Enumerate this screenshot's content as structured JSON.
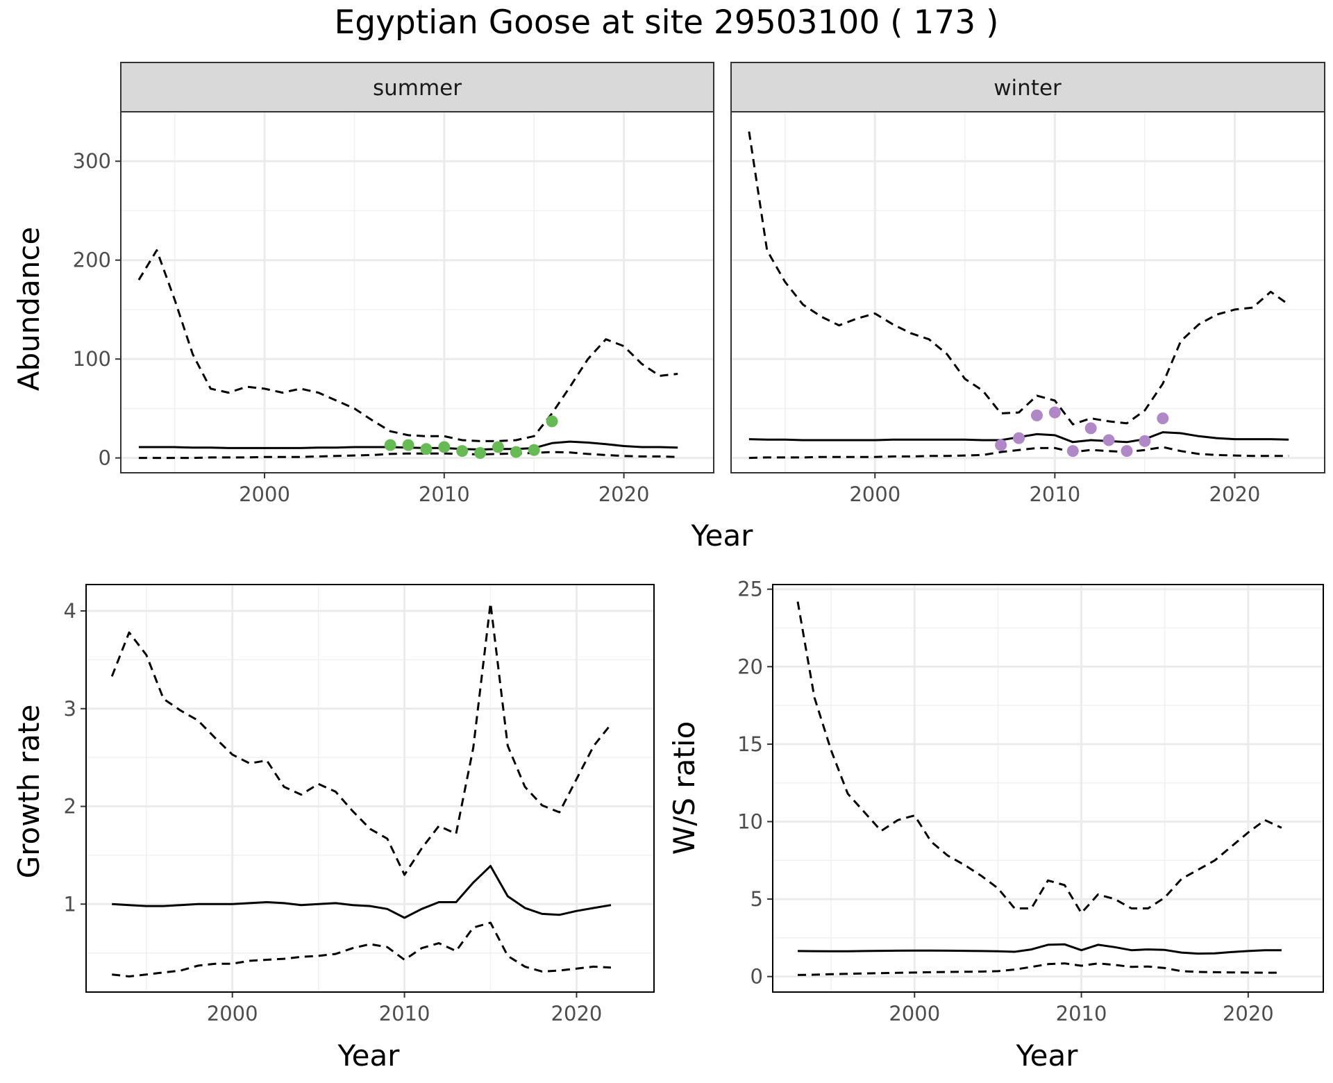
{
  "title": "Egyptian Goose at site 29503100 ( 173 )",
  "chart_data": [
    {
      "id": "abundance",
      "type": "line",
      "facets": [
        "summer",
        "winter"
      ],
      "xlabel": "Year",
      "ylabel": "Abundance",
      "xlim": [
        1992,
        2025
      ],
      "ylim": [
        -15,
        350
      ],
      "xticks": [
        2000,
        2010,
        2020
      ],
      "yticks": [
        0,
        100,
        200,
        300
      ],
      "grid": true,
      "panels": [
        {
          "facet": "summer",
          "point_color": "#66bb55",
          "series": [
            {
              "style": "solid",
              "x": [
                1993,
                1994,
                1995,
                1996,
                1997,
                1998,
                1999,
                2000,
                2001,
                2002,
                2003,
                2004,
                2005,
                2006,
                2007,
                2008,
                2009,
                2010,
                2011,
                2012,
                2013,
                2014,
                2015,
                2016,
                2017,
                2018,
                2019,
                2020,
                2021,
                2022,
                2023
              ],
              "values": [
                11,
                11,
                11,
                10.5,
                10.5,
                10,
                10,
                10,
                10,
                10,
                10.5,
                10.5,
                11,
                11,
                11,
                10.5,
                10,
                10,
                9,
                8.5,
                9,
                9,
                10,
                15,
                16.5,
                15.5,
                14,
                12,
                11,
                11,
                10.5
              ]
            },
            {
              "style": "dashed",
              "x": [
                1993,
                1994,
                1995,
                1996,
                1997,
                1998,
                1999,
                2000,
                2001,
                2002,
                2003,
                2004,
                2005,
                2006,
                2007,
                2008,
                2009,
                2010,
                2011,
                2012,
                2013,
                2014,
                2015,
                2016,
                2017,
                2018,
                2019,
                2020,
                2021,
                2022,
                2023
              ],
              "values": [
                180,
                210,
                160,
                105,
                70,
                66,
                72,
                70,
                66,
                70,
                66,
                58,
                50,
                38,
                27,
                23,
                22,
                22,
                18,
                17,
                17,
                18,
                22,
                45,
                72,
                100,
                120,
                113,
                95,
                83,
                85
              ]
            },
            {
              "style": "dashed",
              "x": [
                1993,
                1994,
                1995,
                1996,
                1997,
                1998,
                1999,
                2000,
                2001,
                2002,
                2003,
                2004,
                2005,
                2006,
                2007,
                2008,
                2009,
                2010,
                2011,
                2012,
                2013,
                2014,
                2015,
                2016,
                2017,
                2018,
                2019,
                2020,
                2021,
                2022,
                2023
              ],
              "values": [
                0,
                0,
                0,
                0,
                0.5,
                0.5,
                0.5,
                1,
                1,
                1,
                1.5,
                2,
                2.5,
                3,
                4,
                4.5,
                4.5,
                4.5,
                4,
                3.5,
                4,
                4.5,
                5,
                6,
                5.5,
                4,
                3,
                2,
                1.5,
                1.5,
                1
              ]
            }
          ],
          "points": {
            "x": [
              2007,
              2008,
              2009,
              2010,
              2011,
              2012,
              2013,
              2014,
              2015,
              2016
            ],
            "values": [
              13,
              13,
              9,
              11,
              7,
              5,
              11,
              6,
              8,
              37
            ]
          }
        },
        {
          "facet": "winter",
          "point_color": "#b088c8",
          "series": [
            {
              "style": "solid",
              "x": [
                1993,
                1994,
                1995,
                1996,
                1997,
                1998,
                1999,
                2000,
                2001,
                2002,
                2003,
                2004,
                2005,
                2006,
                2007,
                2008,
                2009,
                2010,
                2011,
                2012,
                2013,
                2014,
                2015,
                2016,
                2017,
                2018,
                2019,
                2020,
                2021,
                2022,
                2023
              ],
              "values": [
                19,
                18.5,
                18.5,
                18,
                18,
                18,
                18,
                18,
                18.5,
                18.5,
                18.5,
                18.5,
                18.5,
                18,
                18,
                21,
                24,
                23,
                16,
                18,
                17,
                16,
                19,
                26,
                25,
                22,
                20,
                19,
                19,
                19,
                18.5
              ]
            },
            {
              "style": "dashed",
              "x": [
                1993,
                1994,
                1995,
                1996,
                1997,
                1998,
                1999,
                2000,
                2001,
                2002,
                2003,
                2004,
                2005,
                2006,
                2007,
                2008,
                2009,
                2010,
                2011,
                2012,
                2013,
                2014,
                2015,
                2016,
                2017,
                2018,
                2019,
                2020,
                2021,
                2022,
                2023
              ],
              "values": [
                330,
                210,
                178,
                155,
                143,
                134,
                141,
                146,
                135,
                126,
                120,
                105,
                80,
                68,
                45,
                46,
                63,
                58,
                34,
                40,
                37,
                35,
                48,
                75,
                118,
                135,
                145,
                150,
                152,
                168,
                155
              ]
            },
            {
              "style": "dashed",
              "x": [
                1993,
                1994,
                1995,
                1996,
                1997,
                1998,
                1999,
                2000,
                2001,
                2002,
                2003,
                2004,
                2005,
                2006,
                2007,
                2008,
                2009,
                2010,
                2011,
                2012,
                2013,
                2014,
                2015,
                2016,
                2017,
                2018,
                2019,
                2020,
                2021,
                2022,
                2023
              ],
              "values": [
                0,
                0.5,
                0.5,
                0.5,
                1,
                1,
                1,
                1,
                1.5,
                1.5,
                2,
                2,
                2.5,
                3,
                6,
                8,
                10,
                10,
                6,
                8,
                7,
                6,
                8,
                11,
                7,
                4,
                3,
                2.5,
                2,
                2,
                2
              ]
            }
          ],
          "points": {
            "x": [
              2007,
              2008,
              2009,
              2010,
              2011,
              2012,
              2013,
              2014,
              2015,
              2016
            ],
            "values": [
              13,
              20,
              43,
              46,
              7,
              30,
              18,
              7,
              17,
              40
            ]
          }
        }
      ]
    },
    {
      "id": "growth",
      "type": "line",
      "xlabel": "Year",
      "ylabel": "Growth rate",
      "xlim": [
        1991.5,
        2024.5
      ],
      "ylim": [
        0.1,
        4.27
      ],
      "xticks": [
        2000,
        2010,
        2020
      ],
      "yticks": [
        1,
        2,
        3,
        4
      ],
      "grid": true,
      "series": [
        {
          "style": "solid",
          "x": [
            1993,
            1994,
            1995,
            1996,
            1997,
            1998,
            1999,
            2000,
            2001,
            2002,
            2003,
            2004,
            2005,
            2006,
            2007,
            2008,
            2009,
            2010,
            2011,
            2012,
            2013,
            2014,
            2015,
            2016,
            2017,
            2018,
            2019,
            2020,
            2021,
            2022
          ],
          "values": [
            1.0,
            0.99,
            0.98,
            0.98,
            0.99,
            1.0,
            1.0,
            1.0,
            1.01,
            1.02,
            1.01,
            0.99,
            1.0,
            1.01,
            0.99,
            0.98,
            0.95,
            0.86,
            0.95,
            1.02,
            1.02,
            1.22,
            1.39,
            1.08,
            0.96,
            0.9,
            0.89,
            0.93,
            0.96,
            0.99
          ]
        },
        {
          "style": "dashed",
          "x": [
            1993,
            1994,
            1995,
            1996,
            1997,
            1998,
            1999,
            2000,
            2001,
            2002,
            2003,
            2004,
            2005,
            2006,
            2007,
            2008,
            2009,
            2010,
            2011,
            2012,
            2013,
            2014,
            2015,
            2016,
            2017,
            2018,
            2019,
            2020,
            2021,
            2022
          ],
          "values": [
            3.33,
            3.78,
            3.55,
            3.1,
            2.98,
            2.88,
            2.7,
            2.53,
            2.44,
            2.47,
            2.2,
            2.12,
            2.23,
            2.15,
            1.95,
            1.77,
            1.67,
            1.3,
            1.57,
            1.8,
            1.72,
            2.6,
            4.08,
            2.62,
            2.2,
            2.01,
            1.94,
            2.28,
            2.62,
            2.84
          ]
        },
        {
          "style": "dashed",
          "x": [
            1993,
            1994,
            1995,
            1996,
            1997,
            1998,
            1999,
            2000,
            2001,
            2002,
            2003,
            2004,
            2005,
            2006,
            2007,
            2008,
            2009,
            2010,
            2011,
            2012,
            2013,
            2014,
            2015,
            2016,
            2017,
            2018,
            2019,
            2020,
            2021,
            2022
          ],
          "values": [
            0.28,
            0.26,
            0.28,
            0.3,
            0.32,
            0.37,
            0.39,
            0.39,
            0.42,
            0.43,
            0.44,
            0.46,
            0.47,
            0.49,
            0.55,
            0.59,
            0.56,
            0.43,
            0.55,
            0.6,
            0.52,
            0.76,
            0.81,
            0.47,
            0.36,
            0.31,
            0.32,
            0.34,
            0.36,
            0.35
          ]
        }
      ]
    },
    {
      "id": "ratio",
      "type": "line",
      "xlabel": "Year",
      "ylabel": "W/S ratio",
      "xlim": [
        1991.5,
        2024.5
      ],
      "ylim": [
        -1,
        25.3
      ],
      "xticks": [
        2000,
        2010,
        2020
      ],
      "yticks": [
        0,
        5,
        10,
        15,
        20,
        25
      ],
      "grid": true,
      "series": [
        {
          "style": "solid",
          "x": [
            1993,
            1994,
            1995,
            1996,
            1997,
            1998,
            1999,
            2000,
            2001,
            2002,
            2003,
            2004,
            2005,
            2006,
            2007,
            2008,
            2009,
            2010,
            2011,
            2012,
            2013,
            2014,
            2015,
            2016,
            2017,
            2018,
            2019,
            2020,
            2021,
            2022
          ],
          "values": [
            1.65,
            1.64,
            1.63,
            1.63,
            1.65,
            1.66,
            1.67,
            1.68,
            1.68,
            1.67,
            1.66,
            1.65,
            1.63,
            1.6,
            1.75,
            2.05,
            2.08,
            1.7,
            2.05,
            1.9,
            1.7,
            1.75,
            1.72,
            1.55,
            1.48,
            1.5,
            1.58,
            1.65,
            1.7,
            1.7
          ]
        },
        {
          "style": "dashed",
          "x": [
            1993,
            1994,
            1995,
            1996,
            1997,
            1998,
            1999,
            2000,
            2001,
            2002,
            2003,
            2004,
            2005,
            2006,
            2007,
            2008,
            2009,
            2010,
            2011,
            2012,
            2013,
            2014,
            2015,
            2016,
            2017,
            2018,
            2019,
            2020,
            2021,
            2022
          ],
          "values": [
            24.2,
            18.0,
            14.6,
            11.8,
            10.6,
            9.4,
            10.1,
            10.4,
            8.7,
            7.8,
            7.2,
            6.5,
            5.7,
            4.4,
            4.4,
            6.2,
            5.9,
            4.1,
            5.3,
            5.0,
            4.4,
            4.4,
            5.1,
            6.3,
            6.9,
            7.5,
            8.4,
            9.3,
            10.1,
            9.6
          ]
        },
        {
          "style": "dashed",
          "x": [
            1993,
            1994,
            1995,
            1996,
            1997,
            1998,
            1999,
            2000,
            2001,
            2002,
            2003,
            2004,
            2005,
            2006,
            2007,
            2008,
            2009,
            2010,
            2011,
            2012,
            2013,
            2014,
            2015,
            2016,
            2017,
            2018,
            2019,
            2020,
            2021,
            2022
          ],
          "values": [
            0.1,
            0.12,
            0.15,
            0.18,
            0.2,
            0.22,
            0.24,
            0.26,
            0.28,
            0.3,
            0.31,
            0.32,
            0.35,
            0.45,
            0.62,
            0.8,
            0.85,
            0.7,
            0.85,
            0.75,
            0.62,
            0.65,
            0.55,
            0.35,
            0.3,
            0.28,
            0.27,
            0.26,
            0.25,
            0.25
          ]
        }
      ]
    }
  ]
}
